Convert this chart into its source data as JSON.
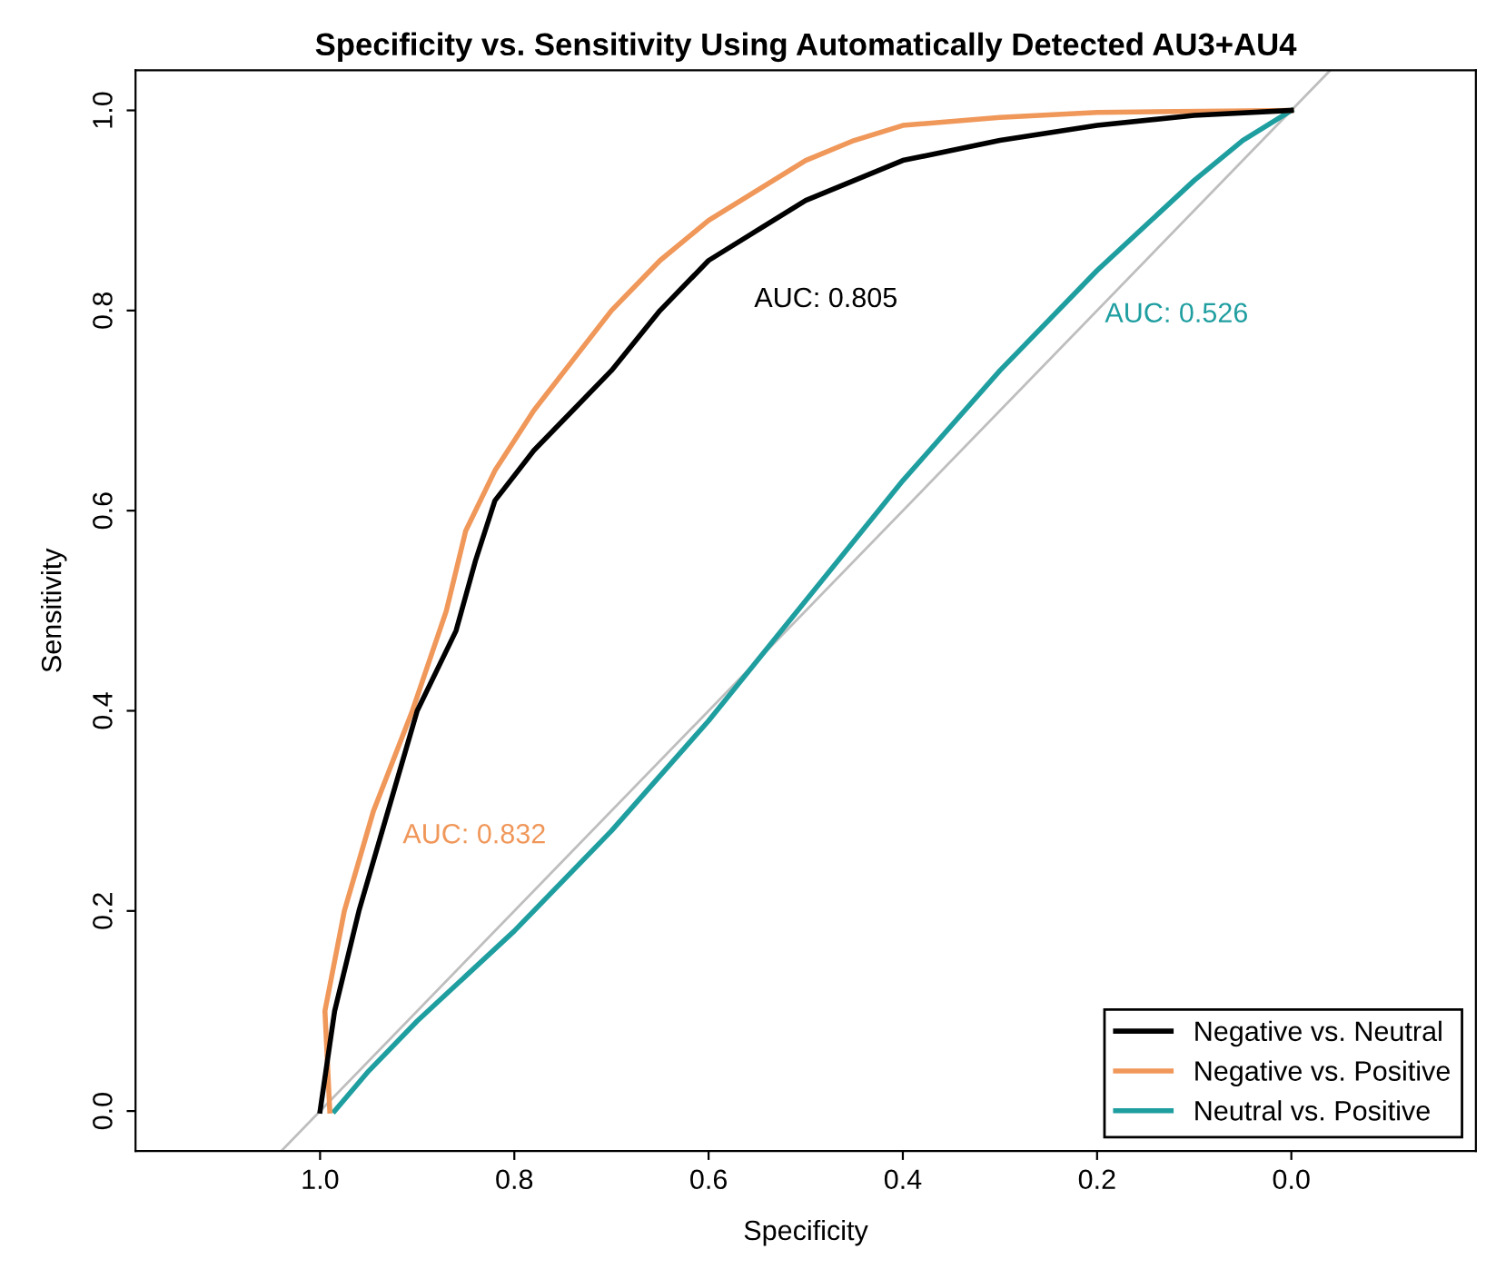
{
  "chart_data": {
    "type": "line",
    "title": "Specificity vs. Sensitivity Using Automatically Detected AU3+AU4",
    "xlabel": "Specificity",
    "ylabel": "Sensitivity",
    "xlim": [
      1.19,
      -0.19
    ],
    "ylim": [
      -0.04,
      1.04
    ],
    "xticks": [
      {
        "value": 1.0,
        "label": "1.0"
      },
      {
        "value": 0.8,
        "label": "0.8"
      },
      {
        "value": 0.6,
        "label": "0.6"
      },
      {
        "value": 0.4,
        "label": "0.4"
      },
      {
        "value": 0.2,
        "label": "0.2"
      },
      {
        "value": 0.0,
        "label": "0.0"
      }
    ],
    "yticks": [
      {
        "value": 0.0,
        "label": "0.0"
      },
      {
        "value": 0.2,
        "label": "0.2"
      },
      {
        "value": 0.4,
        "label": "0.4"
      },
      {
        "value": 0.6,
        "label": "0.6"
      },
      {
        "value": 0.8,
        "label": "0.8"
      },
      {
        "value": 1.0,
        "label": "1.0"
      }
    ],
    "series": [
      {
        "name": "Negative vs. Neutral",
        "color": "#000000",
        "x": [
          1.0,
          0.985,
          0.96,
          0.93,
          0.9,
          0.86,
          0.84,
          0.82,
          0.78,
          0.74,
          0.7,
          0.65,
          0.6,
          0.55,
          0.5,
          0.45,
          0.4,
          0.3,
          0.2,
          0.1,
          0.0
        ],
        "values": [
          0.0,
          0.1,
          0.2,
          0.3,
          0.4,
          0.48,
          0.55,
          0.61,
          0.66,
          0.7,
          0.74,
          0.8,
          0.85,
          0.88,
          0.91,
          0.93,
          0.95,
          0.97,
          0.985,
          0.995,
          1.0
        ]
      },
      {
        "name": "Negative vs. Positive",
        "color": "#f0975a",
        "x": [
          0.99,
          0.995,
          0.975,
          0.945,
          0.905,
          0.87,
          0.85,
          0.82,
          0.78,
          0.74,
          0.7,
          0.65,
          0.6,
          0.55,
          0.5,
          0.45,
          0.4,
          0.3,
          0.2,
          0.0
        ],
        "values": [
          0.0,
          0.1,
          0.2,
          0.3,
          0.4,
          0.5,
          0.58,
          0.64,
          0.7,
          0.75,
          0.8,
          0.85,
          0.89,
          0.92,
          0.95,
          0.97,
          0.985,
          0.993,
          0.998,
          1.0
        ]
      },
      {
        "name": "Neutral vs. Positive",
        "color": "#1f9ea0",
        "x": [
          0.985,
          0.95,
          0.9,
          0.8,
          0.7,
          0.6,
          0.5,
          0.4,
          0.3,
          0.2,
          0.1,
          0.05,
          0.0
        ],
        "values": [
          0.0,
          0.04,
          0.09,
          0.18,
          0.28,
          0.39,
          0.51,
          0.63,
          0.74,
          0.84,
          0.93,
          0.97,
          1.0
        ]
      },
      {
        "color": "#bebebe",
        "x": [
          1.04,
          -0.04
        ],
        "values": [
          -0.04,
          1.04
        ]
      }
    ],
    "annotations": [
      "AUC: 0.805",
      "AUC: 0.832",
      "AUC: 0.526"
    ],
    "legend": "bottom right",
    "grid": false
  }
}
